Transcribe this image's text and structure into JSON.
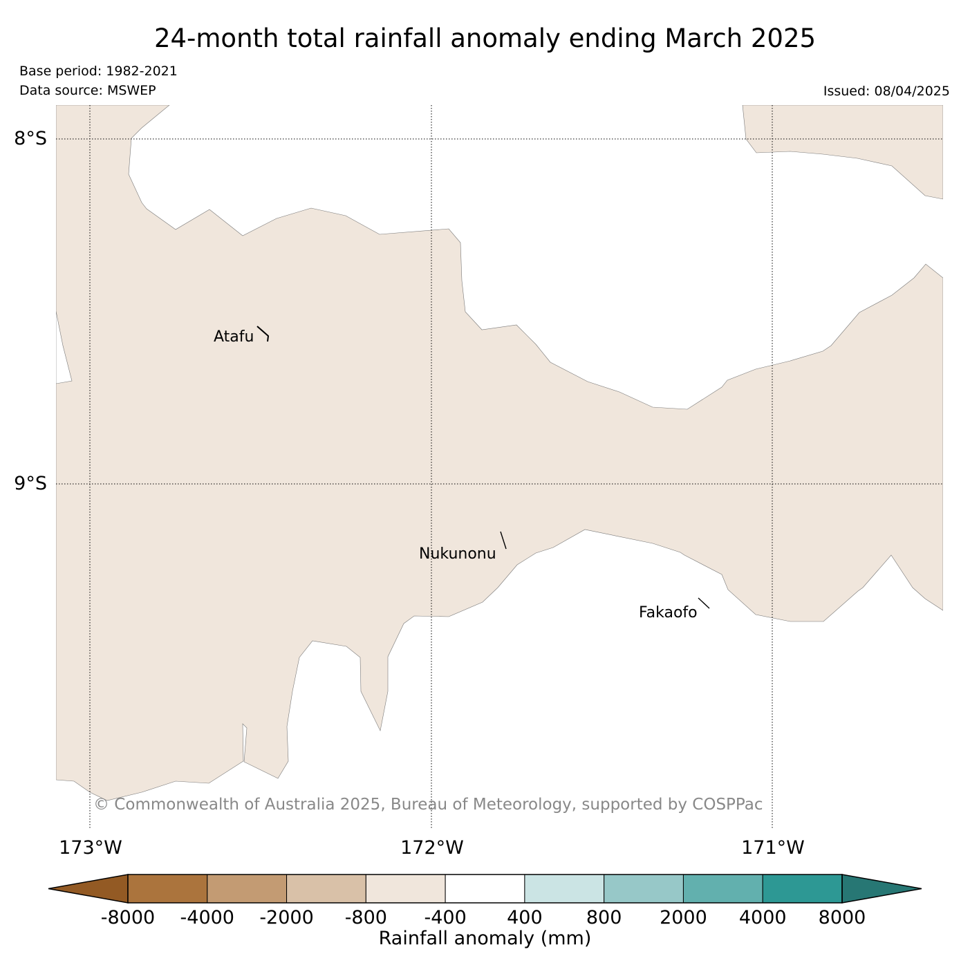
{
  "header": {
    "title": "24-month total rainfall anomaly ending March 2025",
    "base_period": "Base period: 1982-2021",
    "data_source": "Data source: MSWEP",
    "issued": "Issued: 08/04/2025"
  },
  "map": {
    "lat_labels": [
      "8°S",
      "9°S"
    ],
    "lon_labels": [
      "173°W",
      "172°W",
      "171°W"
    ],
    "places": [
      "Atafu",
      "Nukunonu",
      "Fakaofo"
    ],
    "field_color": "#f0e6dc",
    "copyright": "© Commonwealth of Australia 2025, Bureau of Meteorology, supported by COSPPac"
  },
  "colorbar": {
    "label": "Rainfall anomaly (mm)",
    "ticks": [
      "-8000",
      "-4000",
      "-2000",
      "-800",
      "-400",
      "400",
      "800",
      "2000",
      "4000",
      "8000"
    ],
    "colors": [
      "#935a24",
      "#ab743d",
      "#c39b73",
      "#d9c1a8",
      "#f0e6dc",
      "#ffffff",
      "#cbe4e4",
      "#97c8c8",
      "#62b0ae",
      "#2d9894",
      "#277774"
    ]
  }
}
